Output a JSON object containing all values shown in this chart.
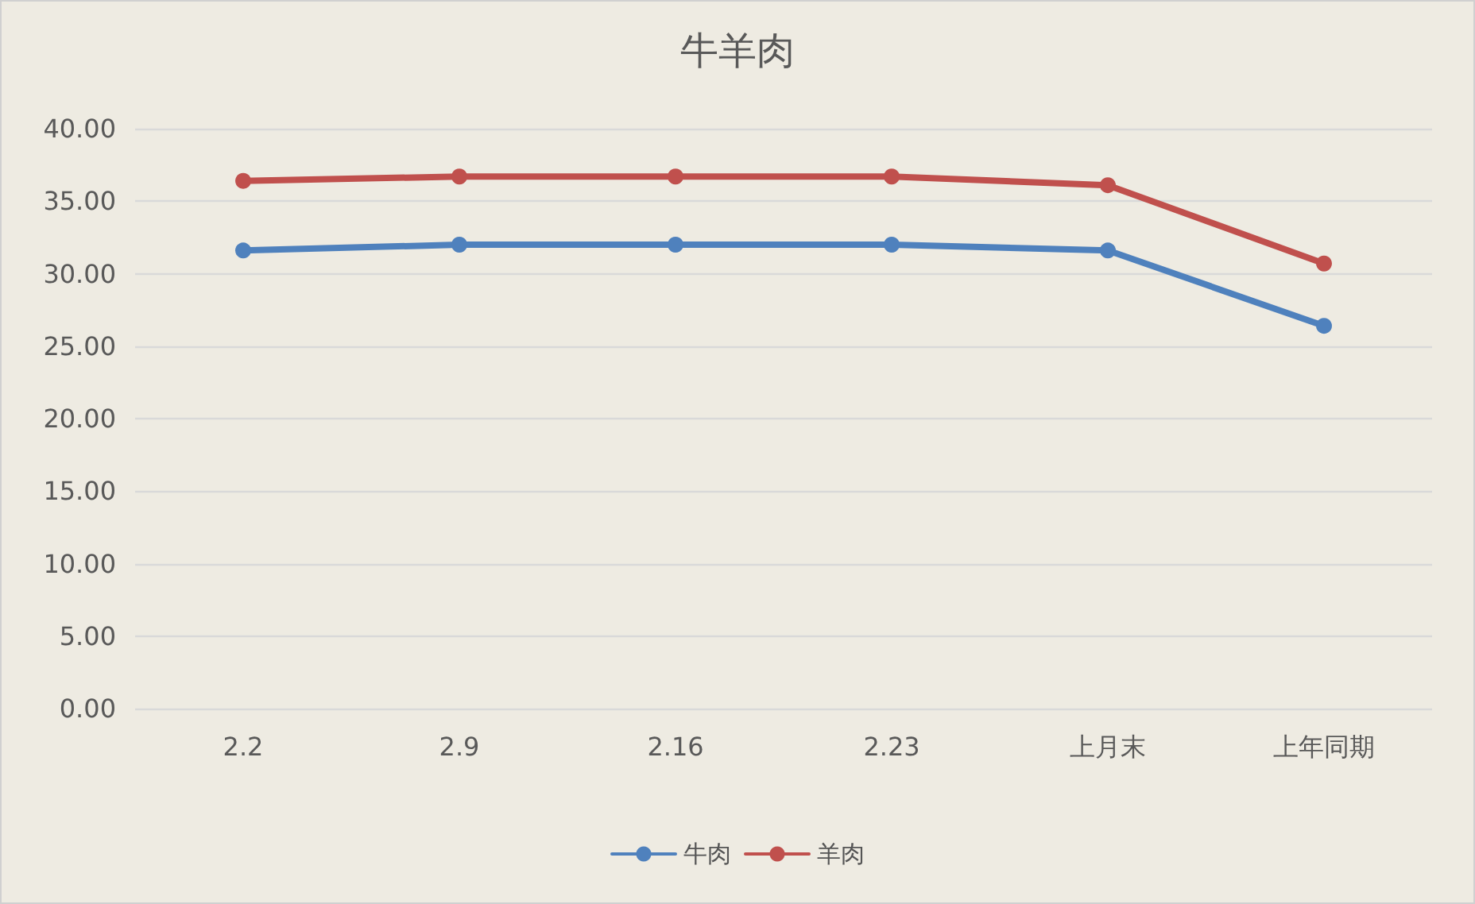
{
  "chart_data": {
    "type": "line",
    "title": "牛羊肉",
    "categories": [
      "2.2",
      "2.9",
      "2.16",
      "2.23",
      "上月末",
      "上年同期"
    ],
    "series": [
      {
        "name": "牛肉",
        "color": "#4f81bd",
        "values": [
          31.6,
          32.0,
          32.0,
          32.0,
          31.6,
          26.4
        ]
      },
      {
        "name": "羊肉",
        "color": "#c0504d",
        "values": [
          36.4,
          36.7,
          36.7,
          36.7,
          36.1,
          30.7
        ]
      }
    ],
    "ylim": [
      0,
      40
    ],
    "yticks": [
      {
        "value": 0,
        "label": "0.00"
      },
      {
        "value": 5,
        "label": "5.00"
      },
      {
        "value": 10,
        "label": "10.00"
      },
      {
        "value": 15,
        "label": "15.00"
      },
      {
        "value": 20,
        "label": "20.00"
      },
      {
        "value": 25,
        "label": "25.00"
      },
      {
        "value": 30,
        "label": "30.00"
      },
      {
        "value": 35,
        "label": "35.00"
      },
      {
        "value": 40,
        "label": "40.00"
      }
    ],
    "grid": "y",
    "legend": "bottom",
    "marker": "circle",
    "line_style": "solid"
  }
}
